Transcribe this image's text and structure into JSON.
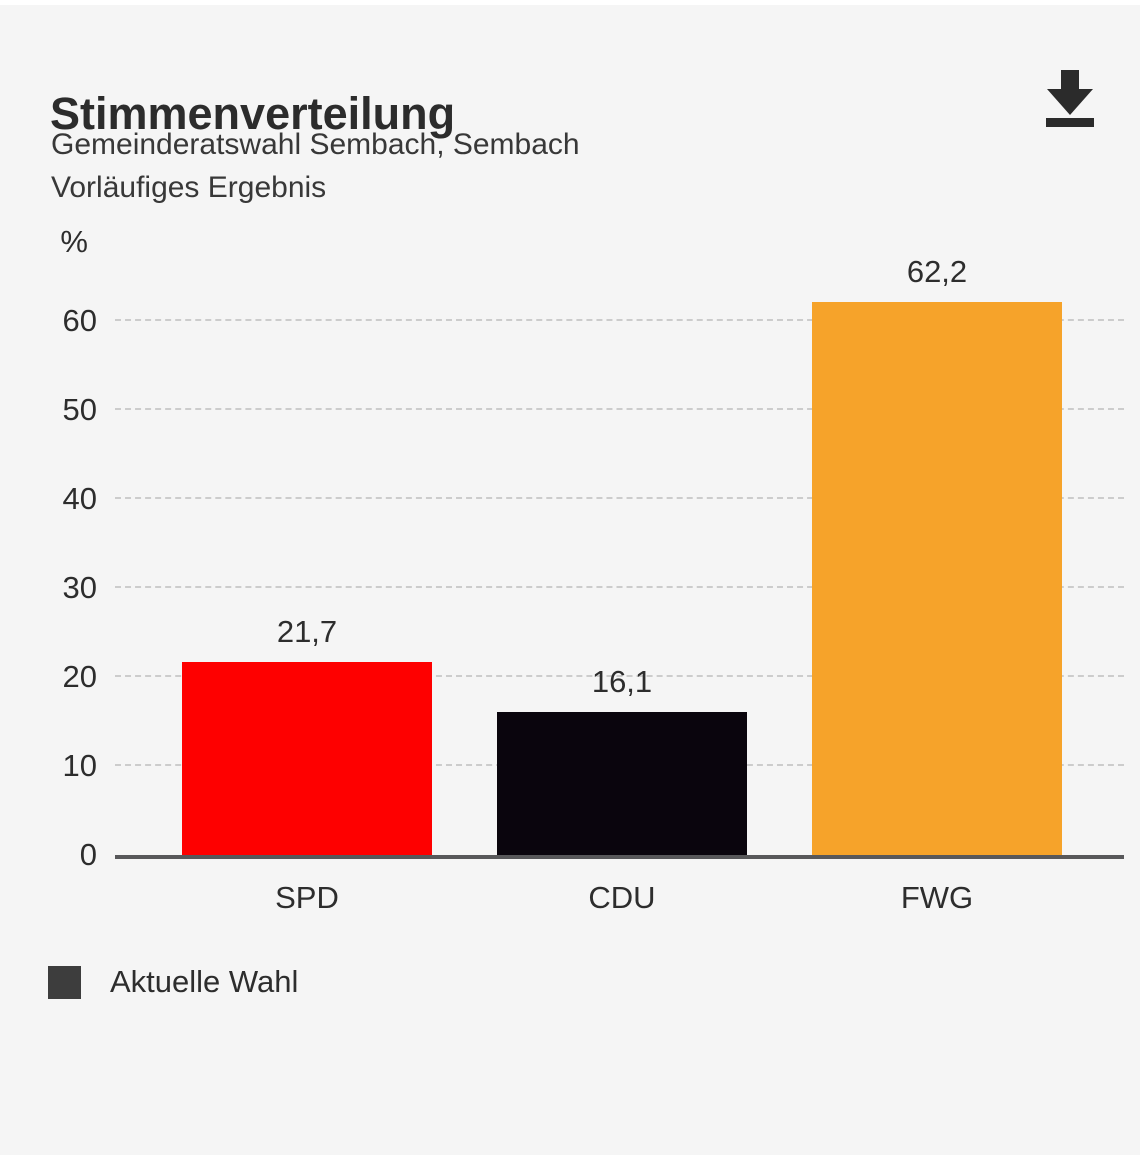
{
  "page": {
    "background_color": "#f5f5f5",
    "top_strip_color": "#ffffff"
  },
  "header": {
    "title": "Stimmenverteilung",
    "subtitle_line1": "Gemeinderatswahl Sembach, Sembach",
    "subtitle_line2": "Vorläufiges Ergebnis",
    "download_icon": "download-arrow",
    "download_icon_color": "#2b2b2b"
  },
  "chart_data": {
    "type": "bar",
    "title": "Stimmenverteilung",
    "subtitle": "Gemeinderatswahl Sembach, Sembach — Vorläufiges Ergebnis",
    "unit_label": "%",
    "categories": [
      "SPD",
      "CDU",
      "FWG"
    ],
    "values": [
      21.7,
      16.1,
      62.2
    ],
    "value_labels": [
      "21,7",
      "16,1",
      "62,2"
    ],
    "bar_colors": [
      "#fe0000",
      "#0a050d",
      "#f6a32a"
    ],
    "yticks": [
      0,
      10,
      20,
      30,
      40,
      50,
      60
    ],
    "ylim": [
      0,
      68
    ],
    "grid": "horizontal dashed",
    "gridline_color": "#cccccc",
    "axis_color": "#58585a",
    "legend_position": "bottom-left"
  },
  "legend": {
    "swatch_color": "#3d3d3d",
    "label": "Aktuelle Wahl"
  }
}
